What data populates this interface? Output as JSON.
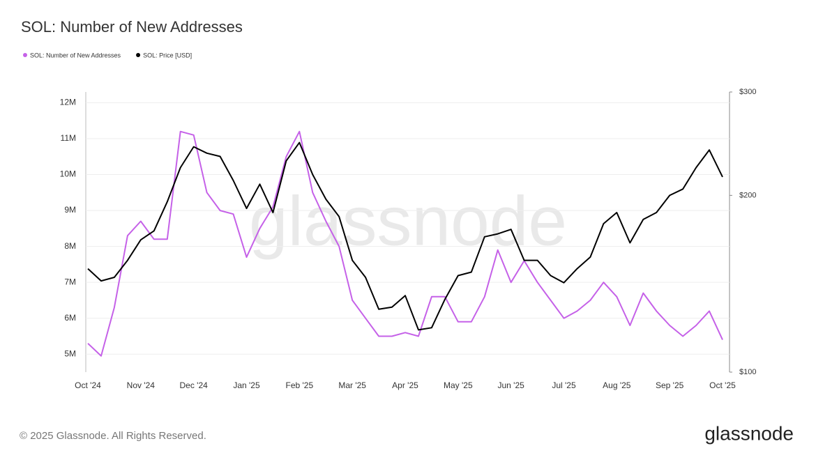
{
  "chart_data": {
    "type": "line",
    "title": "SOL: Number of New Addresses",
    "watermark": "glassnode",
    "categories": [
      "Oct '24",
      null,
      null,
      null,
      "Nov '24",
      null,
      null,
      null,
      "Dec '24",
      null,
      null,
      null,
      "Jan '25",
      null,
      null,
      null,
      "Feb '25",
      null,
      null,
      null,
      "Mar '25",
      null,
      null,
      null,
      "Apr '25",
      null,
      null,
      null,
      "May '25",
      null,
      null,
      null,
      "Jun '25",
      null,
      null,
      null,
      "Jul '25",
      null,
      null,
      null,
      "Aug '25",
      null,
      null,
      null,
      "Sep '25",
      null,
      null,
      null,
      "Oct '25"
    ],
    "series": [
      {
        "name": "SOL: Number of New Addresses",
        "color": "#c561e8",
        "axis": "y",
        "values": [
          5300000,
          4950000,
          6300000,
          8300000,
          8700000,
          8200000,
          8200000,
          11200000,
          11100000,
          9500000,
          9000000,
          8900000,
          7700000,
          8500000,
          9100000,
          10500000,
          11200000,
          9500000,
          8700000,
          8000000,
          6500000,
          6000000,
          5500000,
          5500000,
          5600000,
          5500000,
          6600000,
          6600000,
          5900000,
          5900000,
          6600000,
          7900000,
          7000000,
          7600000,
          7000000,
          6500000,
          6000000,
          6200000,
          6500000,
          7000000,
          6600000,
          5800000,
          6700000,
          6200000,
          5800000,
          5500000,
          5800000,
          6200000,
          5400000
        ]
      },
      {
        "name": "SOL: Price [USD]",
        "color": "#000000",
        "axis": "y2",
        "values": [
          150,
          143,
          145,
          155,
          168,
          174,
          195,
          223,
          242,
          236,
          233,
          212,
          190,
          209,
          187,
          229,
          246,
          217,
          197,
          184,
          155,
          145,
          128,
          129,
          135,
          118,
          119,
          133,
          146,
          148,
          170,
          172,
          175,
          155,
          155,
          146,
          142,
          150,
          157,
          179,
          187,
          166,
          182,
          187,
          200,
          205,
          223,
          239,
          215
        ]
      }
    ],
    "ylim": [
      4500000,
      12300000
    ],
    "yticks": [
      {
        "value": 5000000,
        "label": "5M"
      },
      {
        "value": 6000000,
        "label": "6M"
      },
      {
        "value": 7000000,
        "label": "7M"
      },
      {
        "value": 8000000,
        "label": "8M"
      },
      {
        "value": 9000000,
        "label": "9M"
      },
      {
        "value": 10000000,
        "label": "10M"
      },
      {
        "value": 11000000,
        "label": "11M"
      },
      {
        "value": 12000000,
        "label": "12M"
      }
    ],
    "y2lim": [
      100,
      300
    ],
    "y2ticks": [
      {
        "value": 100,
        "label": "$100"
      },
      {
        "value": 200,
        "label": "$200"
      },
      {
        "value": 300,
        "label": "$300"
      }
    ],
    "y2scale": "log",
    "grid": true,
    "legend": "top-left"
  },
  "footer": {
    "copyright": "© 2025 Glassnode. All Rights Reserved.",
    "logo": "glassnode"
  }
}
